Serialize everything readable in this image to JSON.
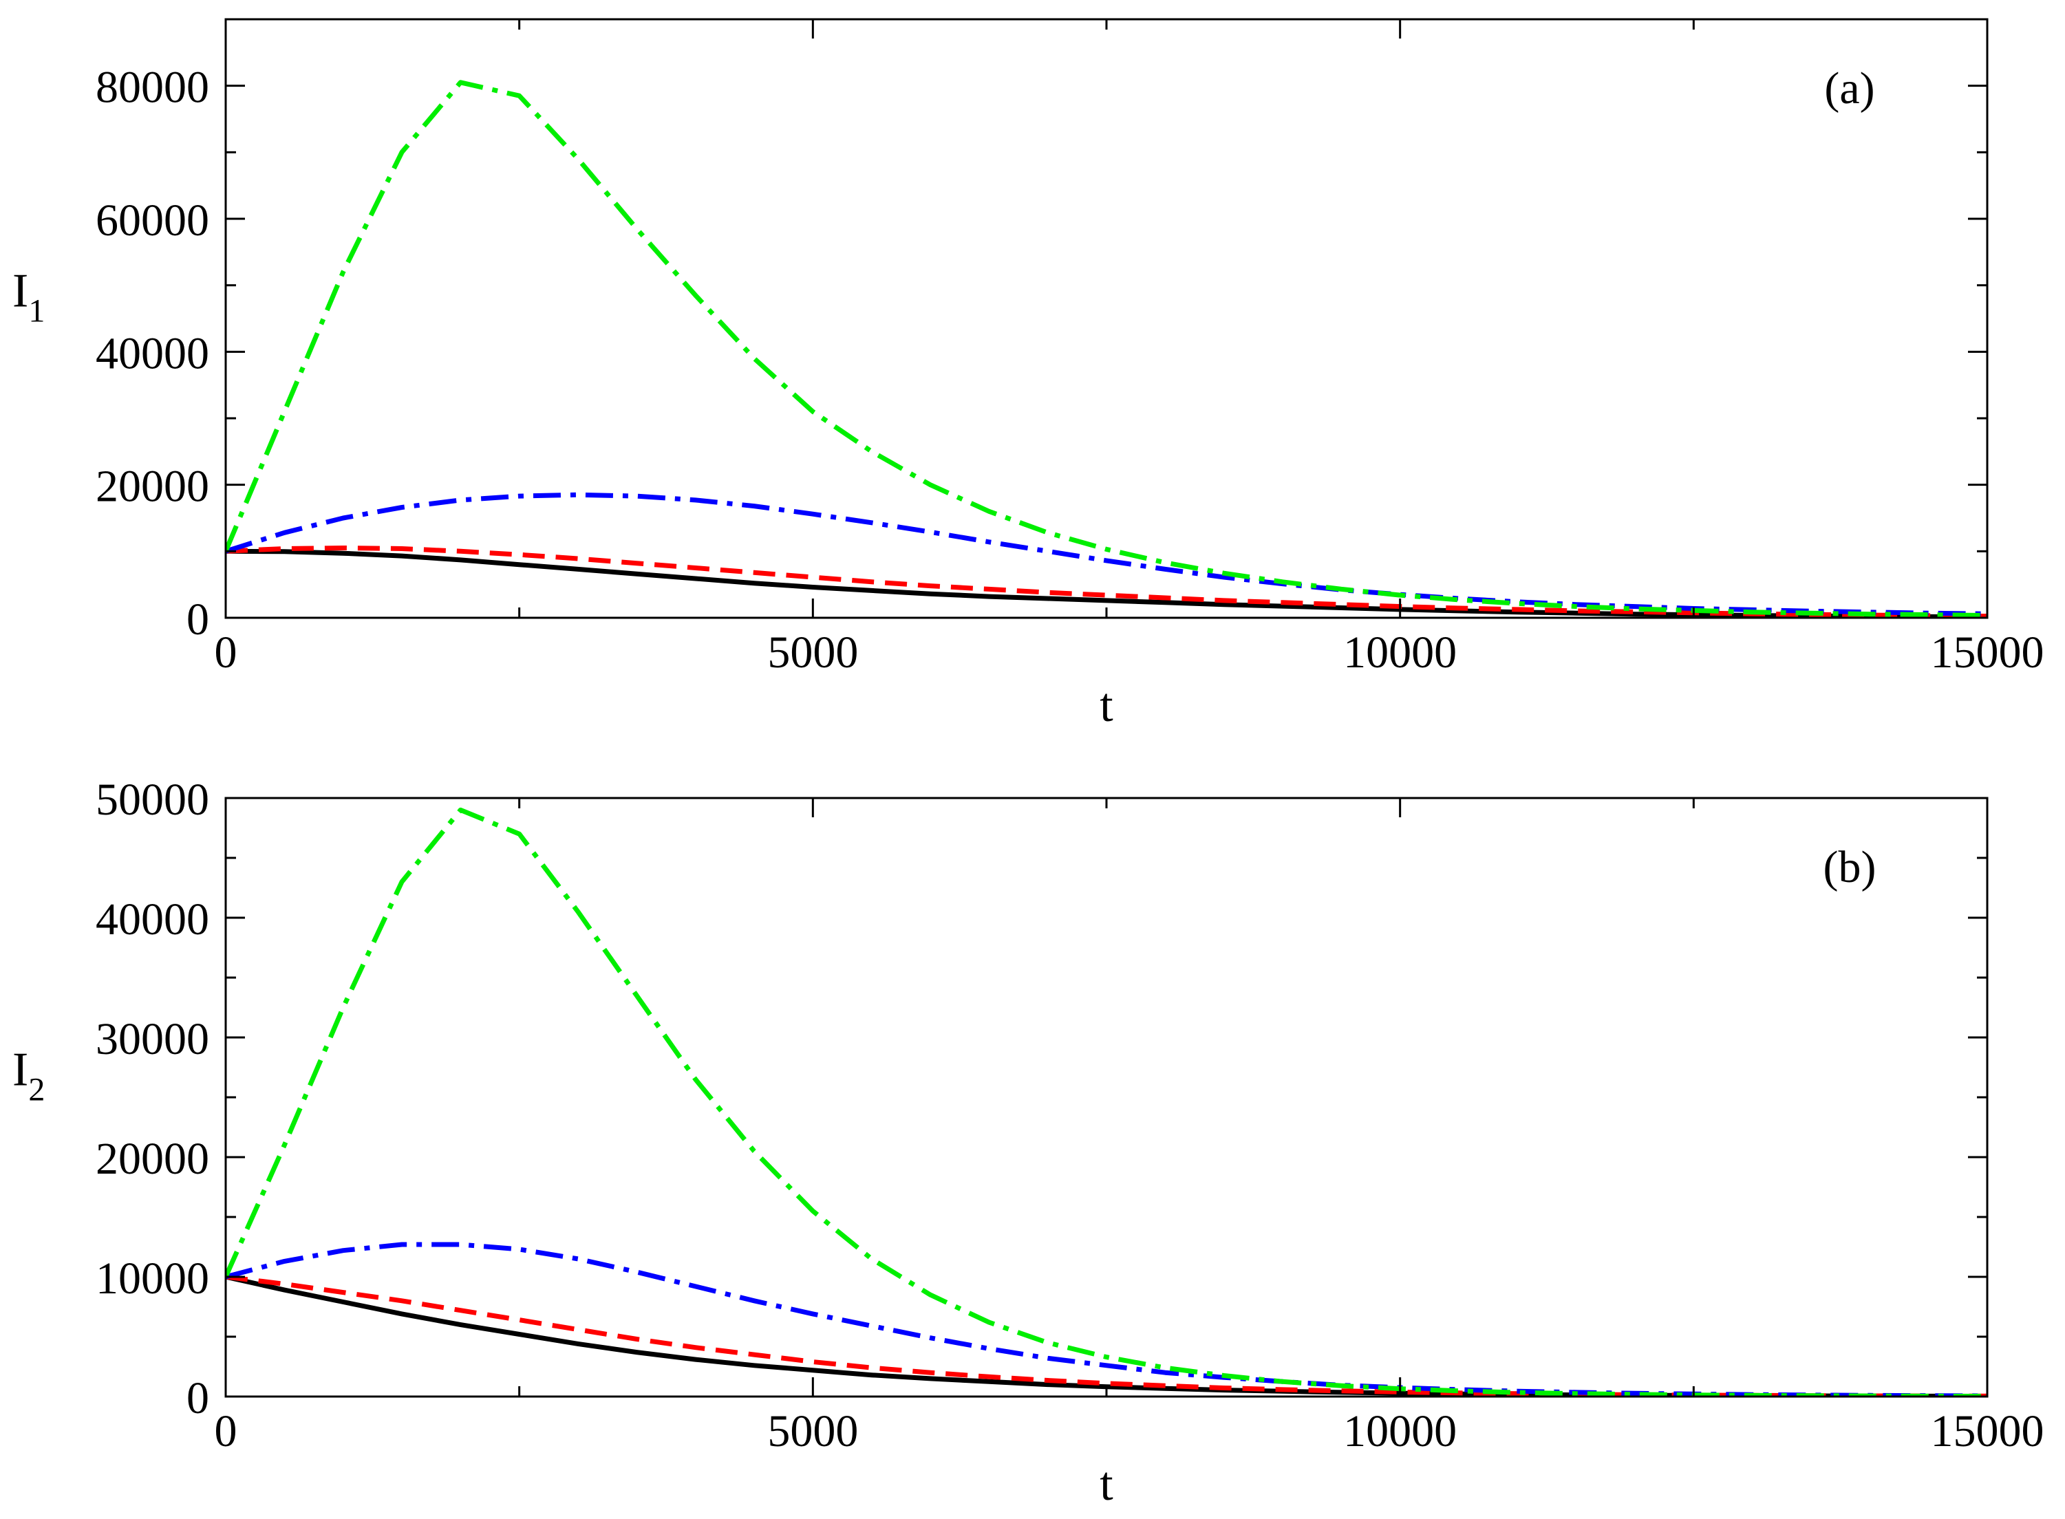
{
  "chart_data": [
    {
      "type": "line",
      "panel_label": "(a)",
      "xlabel": "t",
      "ylabel_main": "I",
      "ylabel_sub": "1",
      "xlim": [
        0,
        15000
      ],
      "ylim": [
        0,
        90000
      ],
      "x_ticks": [
        0,
        5000,
        10000,
        15000
      ],
      "x_tick_labels": [
        "0",
        "5000",
        "10000",
        "15000"
      ],
      "y_ticks": [
        0,
        20000,
        40000,
        60000,
        80000
      ],
      "y_tick_labels": [
        "0",
        "20000",
        "40000",
        "60000",
        "80000"
      ],
      "x_minor_step": 2500,
      "y_minor_step": 10000,
      "grid": false,
      "x": [
        0,
        500,
        1000,
        1500,
        2000,
        2500,
        3000,
        3500,
        4000,
        4500,
        5000,
        5500,
        6000,
        6500,
        7000,
        7500,
        8000,
        8500,
        9000,
        9500,
        10000,
        10500,
        11000,
        11500,
        12000,
        12500,
        13000,
        13500,
        14000,
        14500,
        15000
      ],
      "series": [
        {
          "color": "#000000",
          "style": "solid",
          "values": [
            10000,
            9950,
            9700,
            9300,
            8700,
            8000,
            7300,
            6600,
            5900,
            5200,
            4600,
            4100,
            3600,
            3200,
            2900,
            2600,
            2300,
            2000,
            1750,
            1500,
            1250,
            1050,
            850,
            700,
            550,
            450,
            350,
            280,
            220,
            170,
            130
          ]
        },
        {
          "color": "#ff0000",
          "style": "dashed",
          "values": [
            10000,
            10400,
            10500,
            10400,
            10000,
            9500,
            8900,
            8200,
            7500,
            6800,
            6100,
            5400,
            4800,
            4300,
            3800,
            3400,
            3000,
            2600,
            2300,
            2000,
            1700,
            1450,
            1250,
            1050,
            900,
            750,
            600,
            500,
            400,
            320,
            250
          ]
        },
        {
          "color": "#0000ff",
          "style": "dashdot",
          "values": [
            10000,
            12800,
            15000,
            16600,
            17700,
            18300,
            18500,
            18300,
            17700,
            16800,
            15600,
            14300,
            12900,
            11400,
            10000,
            8600,
            7300,
            6100,
            5100,
            4200,
            3500,
            2900,
            2400,
            2000,
            1700,
            1400,
            1200,
            1000,
            850,
            700,
            600
          ]
        },
        {
          "color": "#00ee00",
          "style": "dashdot",
          "values": [
            10000,
            31000,
            52000,
            70000,
            80500,
            78500,
            69000,
            58500,
            48500,
            39000,
            31000,
            25000,
            20000,
            16000,
            12800,
            10300,
            8300,
            6700,
            5400,
            4300,
            3400,
            2700,
            2150,
            1700,
            1350,
            1100,
            850,
            700,
            550,
            450,
            350
          ]
        }
      ]
    },
    {
      "type": "line",
      "panel_label": "(b)",
      "xlabel": "t",
      "ylabel_main": "I",
      "ylabel_sub": "2",
      "xlim": [
        0,
        15000
      ],
      "ylim": [
        0,
        50000
      ],
      "x_ticks": [
        0,
        5000,
        10000,
        15000
      ],
      "x_tick_labels": [
        "0",
        "5000",
        "10000",
        "15000"
      ],
      "y_ticks": [
        0,
        10000,
        20000,
        30000,
        40000,
        50000
      ],
      "y_tick_labels": [
        "0",
        "10000",
        "20000",
        "30000",
        "40000",
        "50000"
      ],
      "x_minor_step": 2500,
      "y_minor_step": 5000,
      "grid": false,
      "x": [
        0,
        500,
        1000,
        1500,
        2000,
        2500,
        3000,
        3500,
        4000,
        4500,
        5000,
        5500,
        6000,
        6500,
        7000,
        7500,
        8000,
        8500,
        9000,
        9500,
        10000,
        10500,
        11000,
        11500,
        12000,
        12500,
        13000,
        13500,
        14000,
        14500,
        15000
      ],
      "series": [
        {
          "color": "#000000",
          "style": "solid",
          "values": [
            10000,
            8900,
            7900,
            6900,
            6000,
            5200,
            4400,
            3700,
            3100,
            2600,
            2200,
            1800,
            1500,
            1250,
            1000,
            820,
            670,
            540,
            440,
            350,
            280,
            220,
            180,
            140,
            110,
            90,
            70,
            55,
            45,
            35,
            30
          ]
        },
        {
          "color": "#ff0000",
          "style": "dashed",
          "values": [
            10000,
            9400,
            8700,
            8000,
            7200,
            6400,
            5600,
            4800,
            4100,
            3500,
            2900,
            2400,
            2000,
            1650,
            1350,
            1100,
            900,
            720,
            580,
            470,
            380,
            300,
            240,
            190,
            150,
            120,
            95,
            75,
            60,
            48,
            38
          ]
        },
        {
          "color": "#0000ff",
          "style": "dashdot",
          "values": [
            10000,
            11300,
            12200,
            12700,
            12700,
            12300,
            11500,
            10400,
            9200,
            8000,
            6900,
            5900,
            4900,
            4000,
            3200,
            2600,
            2000,
            1600,
            1250,
            950,
            750,
            580,
            450,
            350,
            270,
            210,
            160,
            125,
            95,
            75,
            60
          ]
        },
        {
          "color": "#00ee00",
          "style": "dashdot",
          "values": [
            10000,
            21000,
            32500,
            43000,
            49000,
            47000,
            40500,
            33500,
            26500,
            20500,
            15500,
            11500,
            8500,
            6200,
            4500,
            3300,
            2400,
            1750,
            1250,
            900,
            650,
            470,
            340,
            250,
            180,
            130,
            95,
            70,
            50,
            37,
            27
          ]
        }
      ]
    }
  ]
}
